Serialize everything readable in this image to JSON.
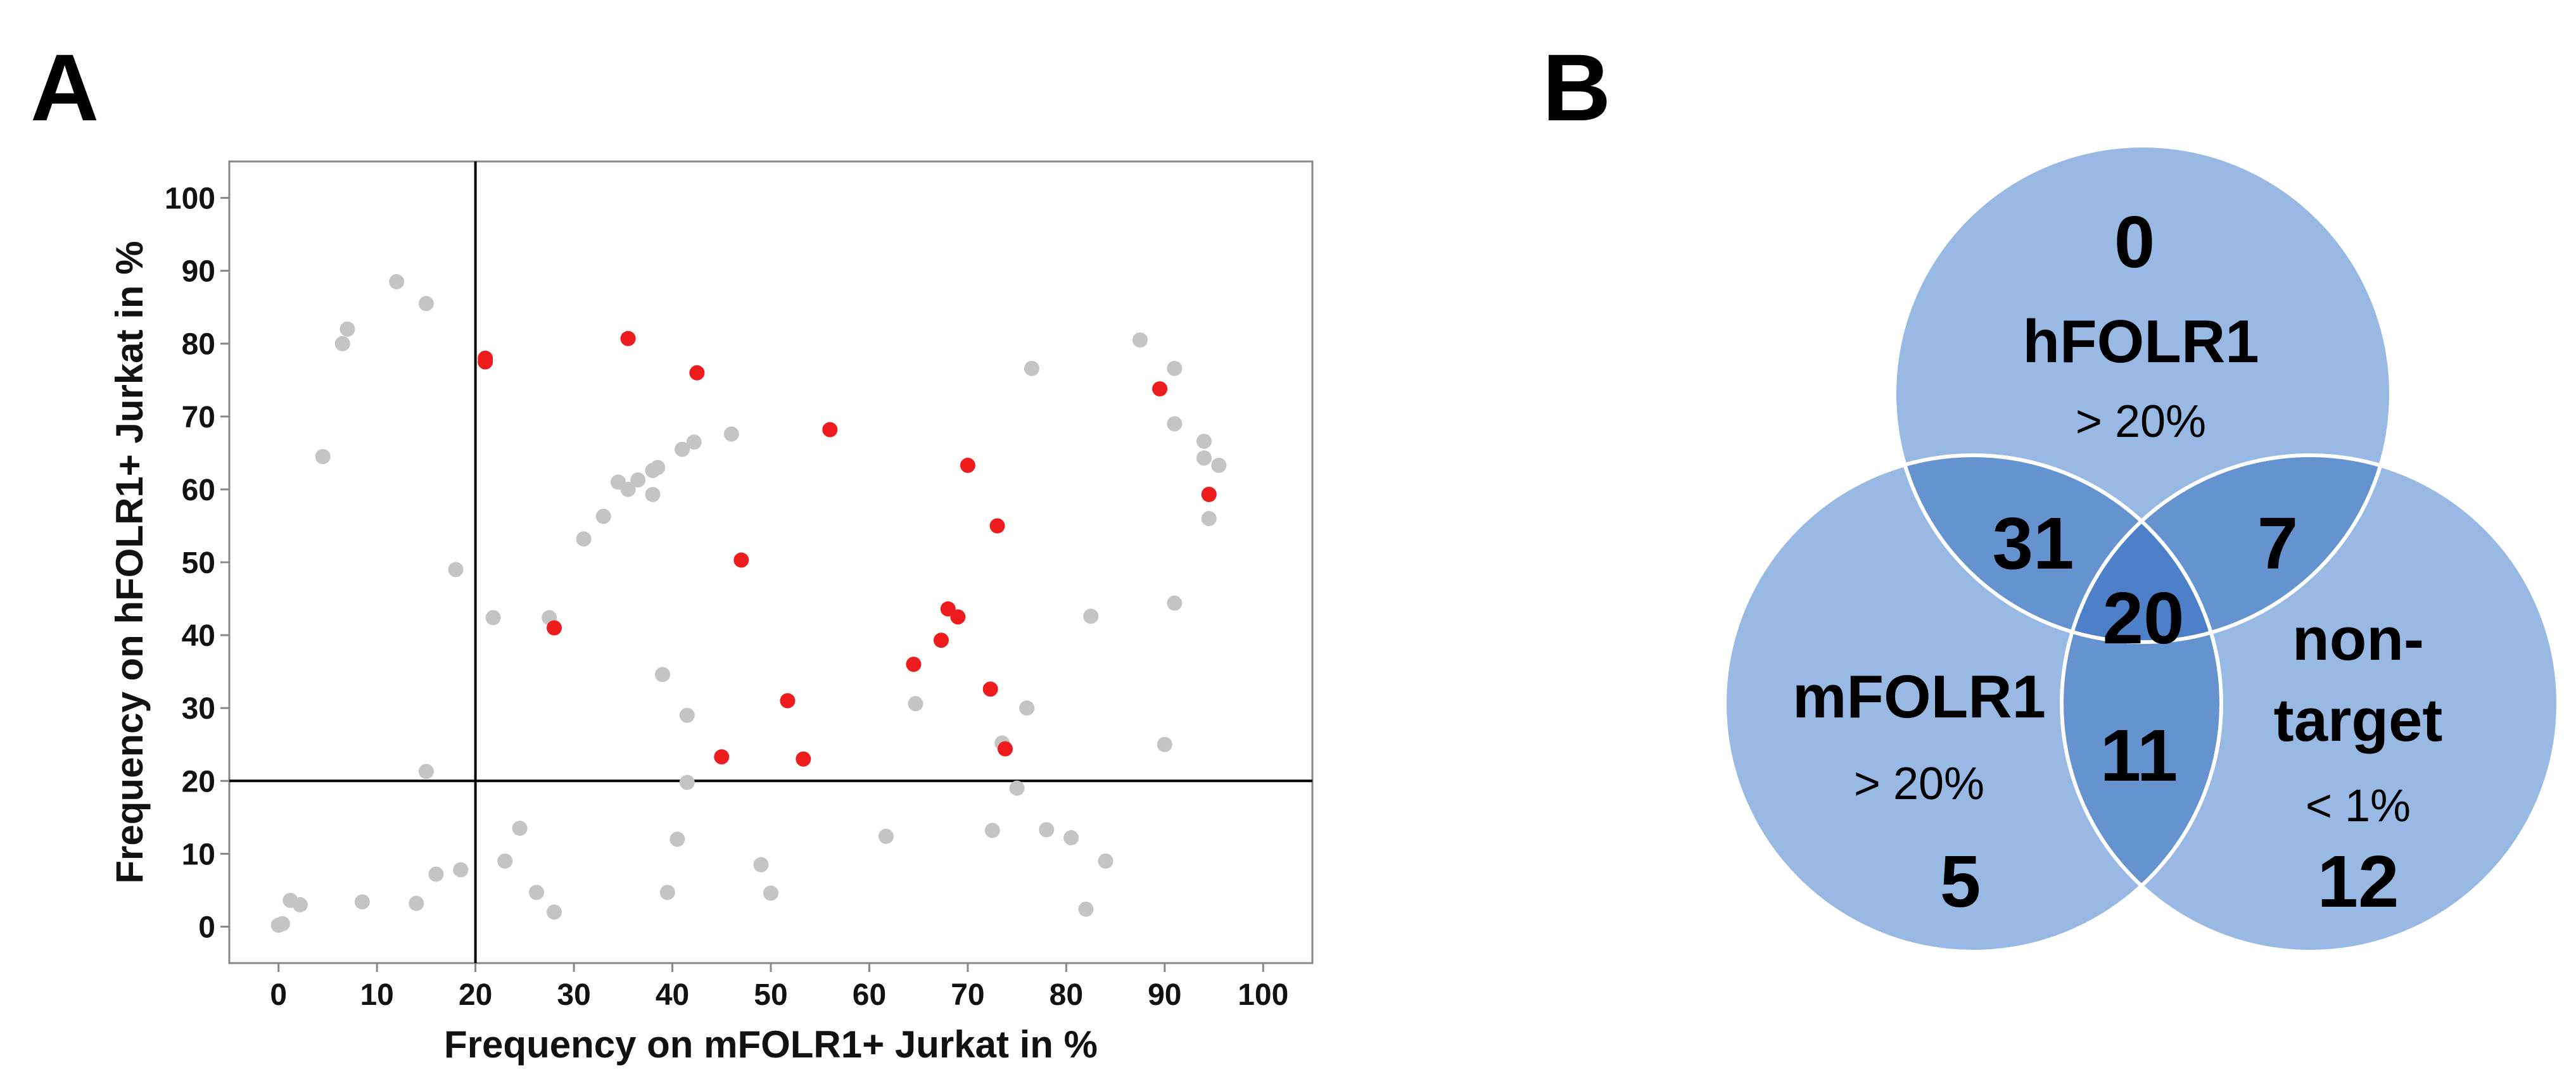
{
  "panels": {
    "a": "A",
    "b": "B"
  },
  "chart_data": [
    {
      "type": "scatter",
      "title": "",
      "xlabel": "Frequency on mFOLR1+ Jurkat in %",
      "ylabel": "Frequency on hFOLR1+ Jurkat in %",
      "xlim": [
        -5,
        105
      ],
      "ylim": [
        -5,
        105
      ],
      "xticks": [
        0,
        10,
        20,
        30,
        40,
        50,
        60,
        70,
        80,
        90,
        100
      ],
      "yticks": [
        0,
        10,
        20,
        30,
        40,
        50,
        60,
        70,
        80,
        90,
        100
      ],
      "threshold_lines": {
        "x": 20,
        "y": 20
      },
      "grid": false,
      "colors": {
        "highlighted": "#ee1c1c",
        "other": "#c4c4c4"
      },
      "series": [
        {
          "color": "#ee1c1c",
          "points": [
            [
              21,
              78
            ],
            [
              21,
              77.5
            ],
            [
              35.5,
              80.7
            ],
            [
              42.5,
              76
            ],
            [
              56,
              68.2
            ],
            [
              70,
              63.3
            ],
            [
              89.5,
              73.8
            ],
            [
              94.5,
              59.3
            ],
            [
              73,
              55
            ],
            [
              47,
              50.3
            ],
            [
              28,
              41
            ],
            [
              68,
              43.6
            ],
            [
              69,
              42.5
            ],
            [
              67.3,
              39.3
            ],
            [
              64.5,
              36
            ],
            [
              72.3,
              32.6
            ],
            [
              51.7,
              31
            ],
            [
              73.8,
              24.4
            ],
            [
              45,
              23.3
            ],
            [
              53.3,
              23
            ]
          ]
        },
        {
          "color": "#c4c4c4",
          "points": [
            [
              12,
              88.5
            ],
            [
              15,
              85.5
            ],
            [
              7,
              82
            ],
            [
              6.5,
              80
            ],
            [
              4.5,
              64.5
            ],
            [
              18,
              49
            ],
            [
              21.8,
              42.4
            ],
            [
              27.5,
              42.4
            ],
            [
              15,
              21.3
            ],
            [
              31,
              53.2
            ],
            [
              33,
              56.3
            ],
            [
              34.5,
              61
            ],
            [
              35.5,
              60
            ],
            [
              36.5,
              61.3
            ],
            [
              38,
              62.6
            ],
            [
              38.5,
              63
            ],
            [
              38,
              59.3
            ],
            [
              41,
              65.5
            ],
            [
              42.2,
              66.5
            ],
            [
              46,
              67.6
            ],
            [
              39,
              34.6
            ],
            [
              41.5,
              29
            ],
            [
              41.5,
              19.8
            ],
            [
              40.5,
              12
            ],
            [
              39.5,
              4.7
            ],
            [
              49,
              8.5
            ],
            [
              50,
              4.6
            ],
            [
              61.7,
              12.4
            ],
            [
              64.7,
              30.6
            ],
            [
              72.5,
              13.2
            ],
            [
              73.5,
              25.2
            ],
            [
              75,
              19
            ],
            [
              76,
              30
            ],
            [
              76.5,
              76.6
            ],
            [
              78,
              13.3
            ],
            [
              80.5,
              12.2
            ],
            [
              82,
              2.4
            ],
            [
              82.5,
              42.6
            ],
            [
              84,
              9
            ],
            [
              87.5,
              80.5
            ],
            [
              90,
              25
            ],
            [
              91,
              76.6
            ],
            [
              91,
              69
            ],
            [
              91,
              44.4
            ],
            [
              94,
              66.6
            ],
            [
              94,
              64.3
            ],
            [
              94.5,
              56
            ],
            [
              94.5,
              59.4
            ],
            [
              95.5,
              63.3
            ],
            [
              0,
              0.2
            ],
            [
              0.4,
              0.4
            ],
            [
              1.2,
              3.6
            ],
            [
              2.2,
              3
            ],
            [
              8.5,
              3.4
            ],
            [
              14,
              3.2
            ],
            [
              16,
              7.2
            ],
            [
              18.5,
              7.8
            ],
            [
              23,
              9
            ],
            [
              24.5,
              13.5
            ],
            [
              26.2,
              4.7
            ],
            [
              28,
              2
            ]
          ]
        }
      ]
    },
    {
      "type": "venn",
      "sets": [
        {
          "name": "hFOLR1",
          "threshold": "> 20%",
          "only": "0"
        },
        {
          "name": "mFOLR1",
          "threshold": "> 20%",
          "only": "5"
        },
        {
          "name_line1": "non-",
          "name_line2": "target",
          "threshold": "< 1%",
          "only": "12"
        }
      ],
      "overlaps": {
        "h_m": "31",
        "h_n": "7",
        "m_n": "11",
        "all": "20"
      },
      "colors": {
        "circle": "#98b9e4",
        "pair": "#6593cf",
        "triple": "#4d80c8",
        "outline": "#ffffff"
      }
    }
  ]
}
